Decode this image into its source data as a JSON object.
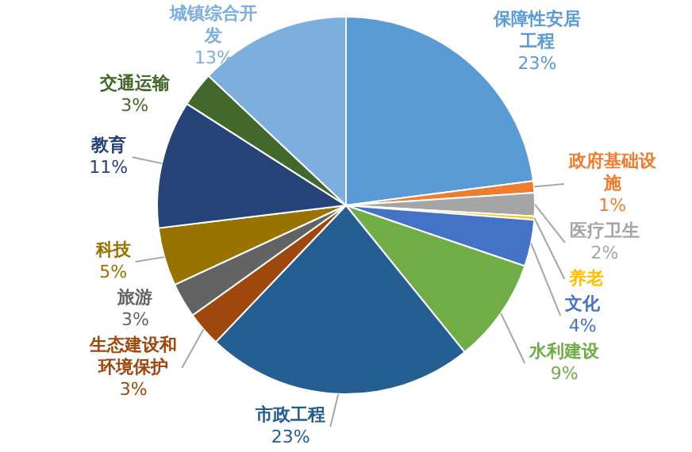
{
  "chart_data": {
    "type": "pie",
    "categories": [
      "保障性安居工程",
      "政府基础设施",
      "医疗卫生",
      "养老",
      "文化",
      "水利建设",
      "市政工程",
      "生态建设和环境保护",
      "旅游",
      "科技",
      "教育",
      "交通运输",
      "城镇综合开发"
    ],
    "values": [
      23,
      1,
      2,
      0.3,
      4,
      9,
      23,
      3,
      3,
      5,
      11,
      3,
      13
    ],
    "value_labels": [
      "23%",
      "1%",
      "2%",
      null,
      "4%",
      "9%",
      "23%",
      "3%",
      "3%",
      "5%",
      "11%",
      "3%",
      "13%"
    ],
    "colors": [
      "#5b9bd5",
      "#ed7d31",
      "#a5a5a5",
      "#ffc000",
      "#4472c4",
      "#70ad47",
      "#255e91",
      "#9e480e",
      "#636363",
      "#997300",
      "#264478",
      "#43682b",
      "#7cafdd"
    ],
    "legend": false
  }
}
